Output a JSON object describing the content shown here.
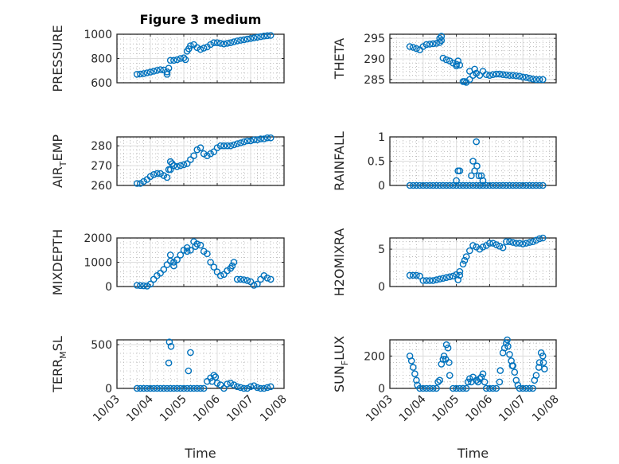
{
  "figure": {
    "title": "Figure 3 medium",
    "marker_color": "#0072BD"
  },
  "chart_data": {
    "type": "scatter",
    "x_unit": "days since 10/03",
    "xlim": [
      0,
      5
    ],
    "xticks": [
      0,
      1,
      2,
      3,
      4,
      5
    ],
    "xtick_labels": [
      "10/03",
      "10/04",
      "10/05",
      "10/06",
      "10/07",
      "10/08"
    ],
    "xlabel": "Time",
    "grid": "major and minor",
    "x": [
      0.6,
      0.7,
      0.8,
      0.9,
      1.0,
      1.1,
      1.2,
      1.3,
      1.4,
      1.5,
      1.6,
      1.7,
      1.8,
      1.9,
      2.0,
      2.1,
      2.2,
      2.3,
      2.4,
      2.5,
      2.6,
      2.7,
      2.8,
      2.9,
      3.0,
      3.1,
      3.2,
      3.3,
      3.4,
      3.5,
      3.6,
      3.7,
      3.8,
      3.9,
      4.0,
      4.1,
      4.2,
      4.3,
      4.4,
      4.5,
      4.6
    ],
    "panels": [
      {
        "ylabel": "PRESSURE",
        "ylim": [
          600,
          1000
        ],
        "yticks": [
          600,
          800,
          1000
        ],
        "yticklabels": [
          "600",
          "800",
          "1000"
        ],
        "y": [
          670,
          672,
          676,
          682,
          688,
          695,
          702,
          708,
          705,
          690,
          785,
          785,
          790,
          800,
          805,
          860,
          905,
          915,
          890,
          875,
          885,
          895,
          915,
          930,
          930,
          925,
          920,
          925,
          930,
          938,
          945,
          950,
          955,
          960,
          965,
          970,
          975,
          980,
          985,
          988,
          990
        ],
        "extra": [
          [
            1.5,
            670
          ],
          [
            1.55,
            720
          ],
          [
            2.05,
            790
          ],
          [
            2.15,
            880
          ]
        ]
      },
      {
        "ylabel": "THETA",
        "ylim": [
          284.2,
          296
        ],
        "yticks": [
          285,
          290,
          295
        ],
        "yticklabels": [
          "285",
          "290",
          "295"
        ],
        "y": [
          293,
          292.8,
          292.5,
          292.2,
          293,
          293.5,
          293.6,
          293.7,
          293.8,
          294,
          290.2,
          289.8,
          289.5,
          289,
          288.7,
          288.5,
          284.5,
          284.3,
          285,
          286,
          286.5,
          286,
          287,
          286.2,
          286,
          286.2,
          286.3,
          286.3,
          286.2,
          286.1,
          286,
          286,
          285.9,
          285.8,
          285.6,
          285.5,
          285.3,
          285.1,
          285,
          285,
          285
        ],
        "extra": [
          [
            1.55,
            295.5
          ],
          [
            1.5,
            295
          ],
          [
            1.55,
            294.5
          ],
          [
            2.05,
            289.5
          ],
          [
            2.0,
            288.3
          ],
          [
            2.4,
            287
          ],
          [
            2.55,
            287.5
          ],
          [
            2.25,
            284.5
          ]
        ]
      },
      {
        "ylabel": "AIR_TEMP",
        "ylim": [
          260,
          284.5
        ],
        "yticks": [
          260,
          270,
          280
        ],
        "yticklabels": [
          "260",
          "270",
          "280"
        ],
        "y": [
          261,
          261,
          262,
          263,
          264.5,
          265.5,
          266,
          266,
          265,
          264,
          268,
          270,
          269.5,
          270,
          270.5,
          271,
          273,
          275,
          278,
          279,
          276,
          275,
          276,
          277,
          279,
          280,
          280,
          280,
          280,
          280.5,
          281,
          281.5,
          282,
          282.5,
          282.5,
          283,
          283,
          283.5,
          283.5,
          284,
          284
        ],
        "extra": [
          [
            1.6,
            272
          ],
          [
            1.55,
            268
          ],
          [
            1.65,
            271
          ]
        ]
      },
      {
        "ylabel": "RAINFALL",
        "ylim": [
          0,
          1
        ],
        "yticks": [
          0,
          0.5,
          1
        ],
        "yticklabels": [
          "0",
          "0.5",
          "1"
        ],
        "y": [
          0,
          0,
          0,
          0,
          0,
          0,
          0,
          0,
          0,
          0,
          0,
          0,
          0,
          0,
          0,
          0,
          0,
          0,
          0,
          0,
          0,
          0,
          0,
          0,
          0,
          0,
          0,
          0,
          0,
          0,
          0,
          0,
          0,
          0,
          0,
          0,
          0,
          0,
          0,
          0,
          0
        ],
        "extra": [
          [
            2.0,
            0.1
          ],
          [
            2.05,
            0.3
          ],
          [
            2.1,
            0.3
          ],
          [
            2.45,
            0.2
          ],
          [
            2.5,
            0.5
          ],
          [
            2.55,
            0.3
          ],
          [
            2.6,
            0.9
          ],
          [
            2.62,
            0.4
          ],
          [
            2.68,
            0.2
          ],
          [
            2.75,
            0.2
          ],
          [
            2.8,
            0.1
          ],
          [
            2.7,
            0
          ]
        ]
      },
      {
        "ylabel": "MIXDEPTH",
        "ylim": [
          0,
          2000
        ],
        "yticks": [
          0,
          1000,
          2000
        ],
        "yticklabels": [
          "0",
          "1000",
          "2000"
        ],
        "y": [
          50,
          40,
          30,
          20,
          100,
          300,
          450,
          550,
          700,
          900,
          1050,
          1000,
          1100,
          1300,
          1500,
          1600,
          1500,
          1850,
          1750,
          1700,
          1450,
          1350,
          1000,
          800,
          600,
          450,
          500,
          650,
          750,
          1000,
          300,
          300,
          280,
          250,
          200,
          50,
          100,
          300,
          450,
          350,
          300
        ],
        "extra": [
          [
            1.6,
            1300
          ],
          [
            1.7,
            850
          ],
          [
            2.1,
            1450
          ],
          [
            2.35,
            1650
          ],
          [
            3.45,
            850
          ]
        ]
      },
      {
        "ylabel": "H2OMIXRA",
        "ylim": [
          0,
          6.5
        ],
        "yticks": [
          0,
          5
        ],
        "yticklabels": [
          "0",
          "5"
        ],
        "y": [
          1.5,
          1.5,
          1.5,
          1.4,
          0.8,
          0.8,
          0.8,
          0.8,
          0.9,
          1.0,
          1.1,
          1.2,
          1.3,
          1.4,
          1.6,
          1.5,
          3.0,
          4.0,
          4.8,
          5.5,
          5.3,
          5.0,
          5.3,
          5.5,
          5.8,
          5.8,
          5.6,
          5.4,
          5.2,
          6.0,
          6.0,
          5.9,
          5.8,
          5.8,
          5.7,
          5.8,
          5.9,
          6.0,
          6.2,
          6.4,
          6.5
        ],
        "extra": [
          [
            2.1,
            2.0
          ],
          [
            2.05,
            0.9
          ],
          [
            2.25,
            3.5
          ]
        ]
      },
      {
        "ylabel": "TERR_MSL",
        "ylim": [
          0,
          555
        ],
        "yticks": [
          0,
          500
        ],
        "yticklabels": [
          "0",
          "500"
        ],
        "y": [
          0,
          0,
          0,
          0,
          0,
          0,
          0,
          0,
          0,
          0,
          0,
          0,
          0,
          0,
          0,
          0,
          0,
          0,
          0,
          0,
          0,
          80,
          120,
          150,
          60,
          40,
          0,
          50,
          60,
          40,
          20,
          10,
          0,
          0,
          20,
          30,
          10,
          0,
          0,
          10,
          20
        ],
        "extra": [
          [
            1.57,
            530
          ],
          [
            1.62,
            480
          ],
          [
            1.55,
            290
          ],
          [
            2.2,
            410
          ],
          [
            2.14,
            200
          ],
          [
            2.85,
            80
          ],
          [
            2.95,
            130
          ]
        ]
      },
      {
        "ylabel": "SUN_FLUX",
        "ylim": [
          0,
          300
        ],
        "yticks": [
          0,
          200
        ],
        "yticklabels": [
          "0",
          "200"
        ],
        "y": [
          200,
          130,
          50,
          0,
          0,
          0,
          0,
          0,
          0,
          50,
          180,
          270,
          80,
          0,
          0,
          0,
          0,
          0,
          60,
          70,
          50,
          60,
          90,
          0,
          0,
          0,
          0,
          40,
          220,
          280,
          210,
          140,
          50,
          0,
          0,
          0,
          0,
          0,
          80,
          160,
          200
        ],
        "extra": [
          [
            0.65,
            170
          ],
          [
            0.75,
            90
          ],
          [
            0.83,
            20
          ],
          [
            1.55,
            150
          ],
          [
            1.63,
            200
          ],
          [
            1.68,
            180
          ],
          [
            1.75,
            250
          ],
          [
            1.78,
            160
          ],
          [
            1.45,
            40
          ],
          [
            2.35,
            40
          ],
          [
            2.45,
            40
          ],
          [
            2.65,
            40
          ],
          [
            2.75,
            70
          ],
          [
            2.85,
            40
          ],
          [
            3.32,
            110
          ],
          [
            3.45,
            250
          ],
          [
            3.53,
            300
          ],
          [
            3.55,
            260
          ],
          [
            3.65,
            170
          ],
          [
            3.68,
            140
          ],
          [
            3.75,
            100
          ],
          [
            3.85,
            20
          ],
          [
            4.35,
            50
          ],
          [
            4.48,
            130
          ],
          [
            4.55,
            220
          ],
          [
            4.62,
            160
          ],
          [
            4.65,
            120
          ]
        ]
      }
    ]
  }
}
